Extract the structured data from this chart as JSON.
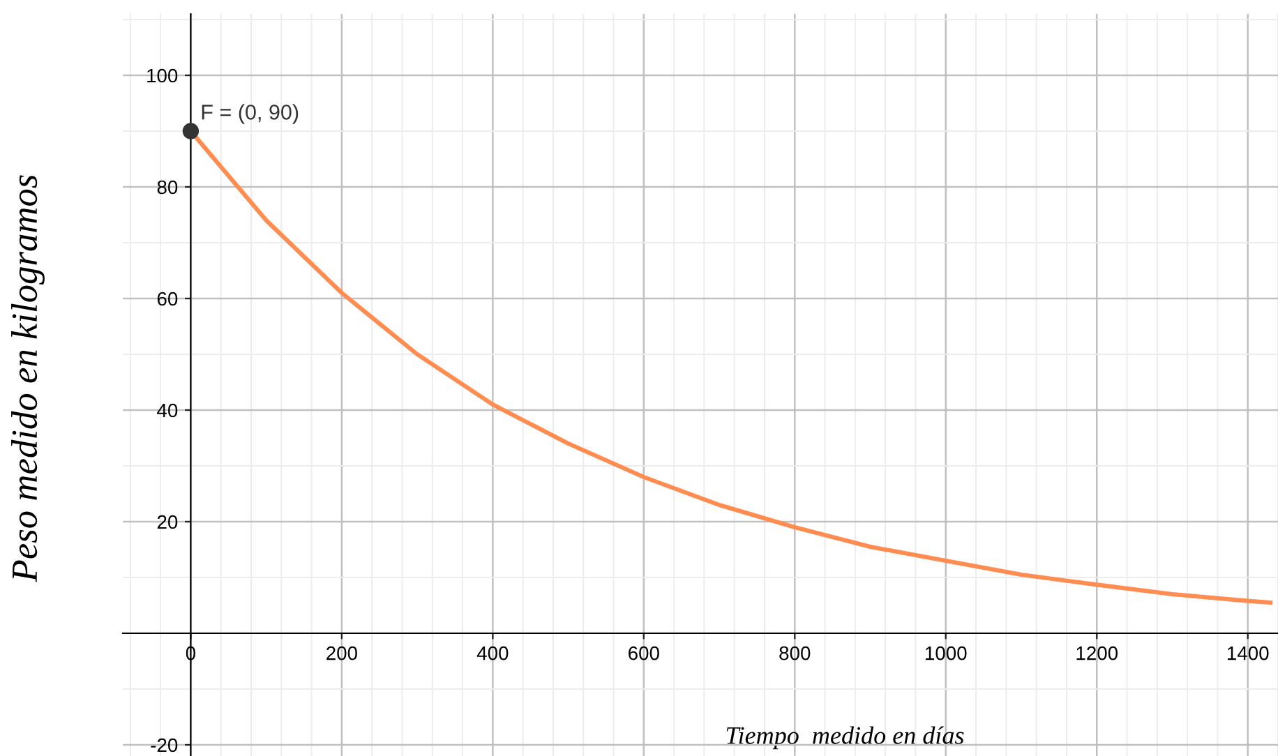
{
  "chart_data": {
    "type": "line",
    "xlabel": "Tiempo  medido en días",
    "ylabel": "Peso medido en kilogramos",
    "series": [
      {
        "color": "#ff8c50",
        "x": [
          0,
          100,
          200,
          300,
          400,
          500,
          600,
          700,
          800,
          900,
          1000,
          1100,
          1200,
          1300,
          1400,
          1430
        ],
        "values": [
          90,
          74,
          61,
          50,
          41,
          34,
          28,
          23,
          19,
          15.5,
          13,
          10.5,
          8.7,
          7,
          5.8,
          5.5
        ],
        "marker": "none"
      },
      {
        "type": "scatter",
        "color": "#333333",
        "x": [
          0
        ],
        "values": [
          90
        ],
        "marker": "circle"
      }
    ],
    "annotations": [
      {
        "text": "F = (0, 90)",
        "x": 0,
        "y": 90
      }
    ],
    "xlim": [
      -90,
      1440
    ],
    "ylim": [
      -22,
      111
    ],
    "xticks": [
      0,
      200,
      400,
      600,
      800,
      1000,
      1200,
      1400
    ],
    "yticks": [
      -20,
      20,
      40,
      60,
      80,
      100
    ],
    "grid": true,
    "legend": false
  }
}
